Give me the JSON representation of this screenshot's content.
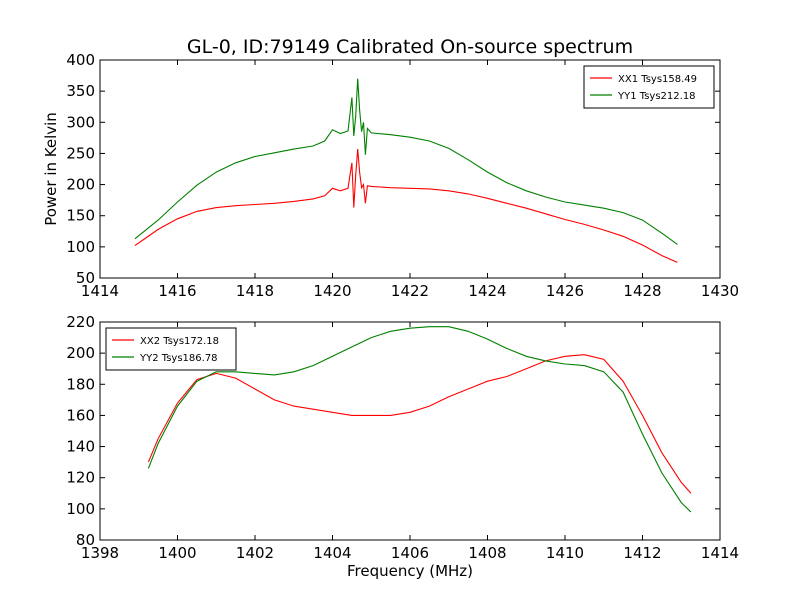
{
  "chart_title": "GL-0, ID:79149 Calibrated On-source spectrum",
  "chart_data": [
    {
      "type": "line",
      "title": "GL-0, ID:79149 Calibrated On-source spectrum",
      "xlabel": "",
      "ylabel": "Power in Kelvin",
      "xlim": [
        1414,
        1430
      ],
      "ylim": [
        50,
        400
      ],
      "xticks": [
        1414,
        1416,
        1418,
        1420,
        1422,
        1424,
        1426,
        1428,
        1430
      ],
      "yticks": [
        50,
        100,
        150,
        200,
        250,
        300,
        350,
        400
      ],
      "grid": false,
      "legend_position": "top-right",
      "series": [
        {
          "name": "XX1 Tsys158.49",
          "color": "#ff0000",
          "x": [
            1414.9,
            1415.2,
            1415.5,
            1416.0,
            1416.5,
            1417.0,
            1417.5,
            1418.0,
            1418.5,
            1419.0,
            1419.5,
            1419.8,
            1420.0,
            1420.2,
            1420.4,
            1420.5,
            1420.55,
            1420.6,
            1420.65,
            1420.7,
            1420.75,
            1420.8,
            1420.85,
            1420.9,
            1421.0,
            1421.5,
            1422.0,
            1422.5,
            1423.0,
            1423.5,
            1424.0,
            1424.5,
            1425.0,
            1425.5,
            1426.0,
            1426.5,
            1427.0,
            1427.5,
            1428.0,
            1428.5,
            1428.9
          ],
          "y": [
            102,
            115,
            128,
            145,
            157,
            163,
            166,
            168,
            170,
            173,
            177,
            182,
            194,
            190,
            194,
            235,
            163,
            215,
            257,
            220,
            195,
            200,
            170,
            198,
            197,
            195,
            194,
            193,
            190,
            185,
            178,
            170,
            162,
            153,
            144,
            136,
            127,
            117,
            103,
            86,
            75
          ]
        },
        {
          "name": "YY1 Tsys212.18",
          "color": "#008000",
          "x": [
            1414.9,
            1415.2,
            1415.5,
            1416.0,
            1416.5,
            1417.0,
            1417.5,
            1418.0,
            1418.5,
            1419.0,
            1419.5,
            1419.8,
            1420.0,
            1420.2,
            1420.4,
            1420.5,
            1420.55,
            1420.6,
            1420.65,
            1420.7,
            1420.75,
            1420.8,
            1420.85,
            1420.9,
            1421.0,
            1421.5,
            1422.0,
            1422.5,
            1423.0,
            1423.5,
            1424.0,
            1424.5,
            1425.0,
            1425.5,
            1426.0,
            1426.5,
            1427.0,
            1427.5,
            1428.0,
            1428.5,
            1428.9
          ],
          "y": [
            113,
            128,
            143,
            172,
            199,
            220,
            235,
            245,
            251,
            257,
            262,
            270,
            288,
            282,
            286,
            340,
            278,
            310,
            370,
            320,
            285,
            300,
            248,
            290,
            283,
            280,
            276,
            270,
            258,
            240,
            220,
            203,
            190,
            180,
            172,
            167,
            162,
            155,
            143,
            122,
            104
          ]
        }
      ]
    },
    {
      "type": "line",
      "title": "",
      "xlabel": "Frequency (MHz)",
      "ylabel": "",
      "xlim": [
        1398,
        1414
      ],
      "ylim": [
        80,
        220
      ],
      "xticks": [
        1398,
        1400,
        1402,
        1404,
        1406,
        1408,
        1410,
        1412,
        1414
      ],
      "yticks": [
        80,
        100,
        120,
        140,
        160,
        180,
        200,
        220
      ],
      "grid": false,
      "legend_position": "top-left",
      "series": [
        {
          "name": "XX2 Tsys172.18",
          "color": "#ff0000",
          "x": [
            1399.25,
            1399.5,
            1400.0,
            1400.5,
            1401.0,
            1401.5,
            1402.0,
            1402.5,
            1403.0,
            1403.5,
            1404.0,
            1404.5,
            1405.0,
            1405.5,
            1406.0,
            1406.5,
            1407.0,
            1407.5,
            1408.0,
            1408.5,
            1409.0,
            1409.5,
            1410.0,
            1410.5,
            1411.0,
            1411.5,
            1412.0,
            1412.5,
            1413.0,
            1413.25
          ],
          "y": [
            130,
            145,
            168,
            183,
            187,
            184,
            177,
            170,
            166,
            164,
            162,
            160,
            160,
            160,
            162,
            166,
            172,
            177,
            182,
            185,
            190,
            195,
            198,
            199,
            196,
            182,
            160,
            136,
            117,
            110
          ]
        },
        {
          "name": "YY2 Tsys186.78",
          "color": "#008000",
          "x": [
            1399.25,
            1399.5,
            1400.0,
            1400.5,
            1401.0,
            1401.5,
            1402.0,
            1402.5,
            1403.0,
            1403.5,
            1404.0,
            1404.5,
            1405.0,
            1405.5,
            1406.0,
            1406.5,
            1407.0,
            1407.5,
            1408.0,
            1408.5,
            1409.0,
            1409.5,
            1410.0,
            1410.5,
            1411.0,
            1411.5,
            1412.0,
            1412.5,
            1413.0,
            1413.25
          ],
          "y": [
            126,
            142,
            166,
            182,
            188,
            188,
            187,
            186,
            188,
            192,
            198,
            204,
            210,
            214,
            216,
            217,
            217,
            214,
            209,
            203,
            198,
            195,
            193,
            192,
            188,
            175,
            148,
            123,
            104,
            98
          ]
        }
      ]
    }
  ]
}
